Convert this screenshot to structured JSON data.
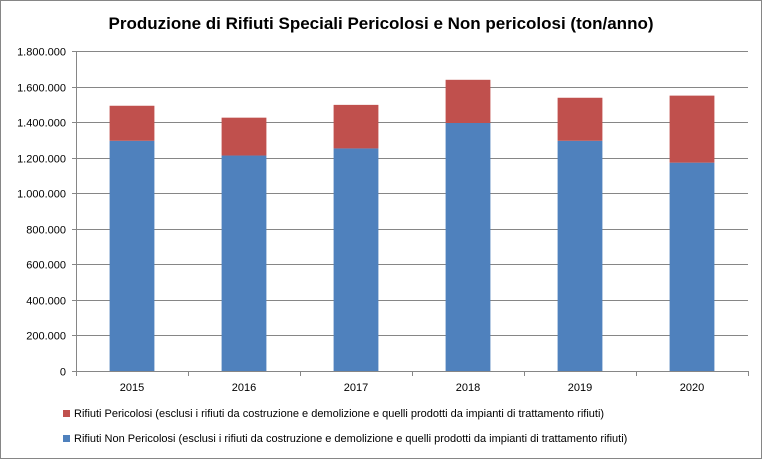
{
  "chart_data": {
    "type": "bar",
    "stacked": true,
    "title": "Produzione di Rifiuti Speciali Pericolosi e Non pericolosi (ton/anno)",
    "xlabel": "",
    "ylabel": "",
    "categories": [
      "2015",
      "2016",
      "2017",
      "2018",
      "2019",
      "2020"
    ],
    "ylim": [
      0,
      1800000
    ],
    "ytick_step": 200000,
    "ytick_labels": [
      "0",
      "200.000",
      "400.000",
      "600.000",
      "800.000",
      "1.000.000",
      "1.200.000",
      "1.400.000",
      "1.600.000",
      "1.800.000"
    ],
    "grid": true,
    "legend_position": "bottom",
    "series": [
      {
        "name": "Rifiuti Non Pericolosi (esclusi i rifiuti da costruzione e demolizione e quelli prodotti da impianti di trattamento rifiuti)",
        "color": "#4f81bd",
        "values": [
          1295000,
          1212000,
          1252000,
          1395000,
          1295000,
          1172000
        ]
      },
      {
        "name": "Rifiuti Pericolosi (esclusi i rifiuti da costruzione e demolizione e quelli prodotti da impianti di trattamento rifiuti)",
        "color": "#c0504d",
        "values": [
          197000,
          213000,
          245000,
          243000,
          242000,
          377000
        ]
      }
    ]
  }
}
